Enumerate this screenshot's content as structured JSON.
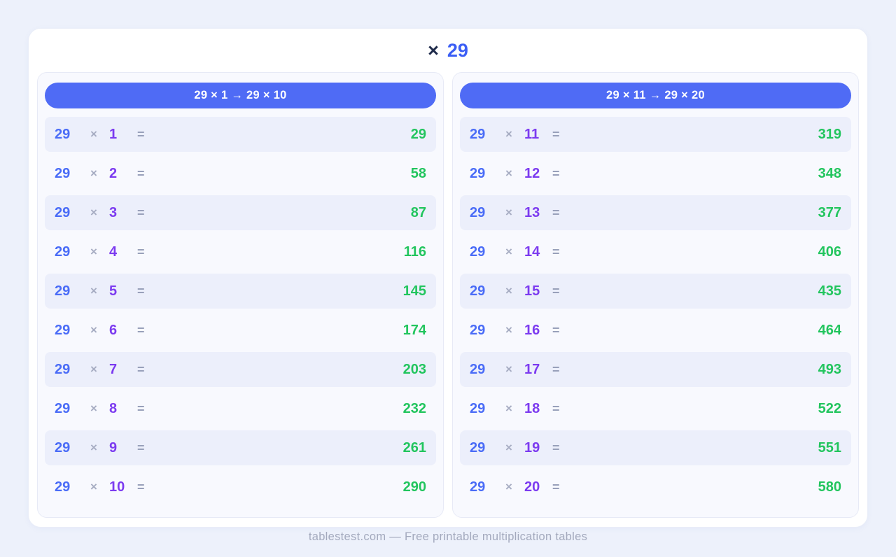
{
  "page": {
    "title": {
      "symbol": "×",
      "number": "29"
    },
    "footer": "tablestest.com — Free printable multiplication tables"
  },
  "colors": {
    "page_background": "#edf1fb",
    "card_background": "#ffffff",
    "panel_background": "#f8f9fe",
    "header_bar": "#4f6bf5",
    "row_alt_background": "#eceffb",
    "operand_blue": "#4a6cf7",
    "multiplier_purple": "#7c3bf0",
    "operator_gray": "#a6acc2",
    "result_green": "#22c55e",
    "title_dark": "#1e2a4a",
    "title_blue": "#3b5ef5",
    "footer_gray": "#a3a9bd"
  },
  "panels": [
    {
      "header": "29 × 1  →  29 × 10",
      "rows": [
        {
          "a": "29",
          "op": "×",
          "b": "1",
          "eq": "=",
          "result": "29"
        },
        {
          "a": "29",
          "op": "×",
          "b": "2",
          "eq": "=",
          "result": "58"
        },
        {
          "a": "29",
          "op": "×",
          "b": "3",
          "eq": "=",
          "result": "87"
        },
        {
          "a": "29",
          "op": "×",
          "b": "4",
          "eq": "=",
          "result": "116"
        },
        {
          "a": "29",
          "op": "×",
          "b": "5",
          "eq": "=",
          "result": "145"
        },
        {
          "a": "29",
          "op": "×",
          "b": "6",
          "eq": "=",
          "result": "174"
        },
        {
          "a": "29",
          "op": "×",
          "b": "7",
          "eq": "=",
          "result": "203"
        },
        {
          "a": "29",
          "op": "×",
          "b": "8",
          "eq": "=",
          "result": "232"
        },
        {
          "a": "29",
          "op": "×",
          "b": "9",
          "eq": "=",
          "result": "261"
        },
        {
          "a": "29",
          "op": "×",
          "b": "10",
          "eq": "=",
          "result": "290"
        }
      ]
    },
    {
      "header": "29 × 11  →  29 × 20",
      "rows": [
        {
          "a": "29",
          "op": "×",
          "b": "11",
          "eq": "=",
          "result": "319"
        },
        {
          "a": "29",
          "op": "×",
          "b": "12",
          "eq": "=",
          "result": "348"
        },
        {
          "a": "29",
          "op": "×",
          "b": "13",
          "eq": "=",
          "result": "377"
        },
        {
          "a": "29",
          "op": "×",
          "b": "14",
          "eq": "=",
          "result": "406"
        },
        {
          "a": "29",
          "op": "×",
          "b": "15",
          "eq": "=",
          "result": "435"
        },
        {
          "a": "29",
          "op": "×",
          "b": "16",
          "eq": "=",
          "result": "464"
        },
        {
          "a": "29",
          "op": "×",
          "b": "17",
          "eq": "=",
          "result": "493"
        },
        {
          "a": "29",
          "op": "×",
          "b": "18",
          "eq": "=",
          "result": "522"
        },
        {
          "a": "29",
          "op": "×",
          "b": "19",
          "eq": "=",
          "result": "551"
        },
        {
          "a": "29",
          "op": "×",
          "b": "20",
          "eq": "=",
          "result": "580"
        }
      ]
    }
  ]
}
